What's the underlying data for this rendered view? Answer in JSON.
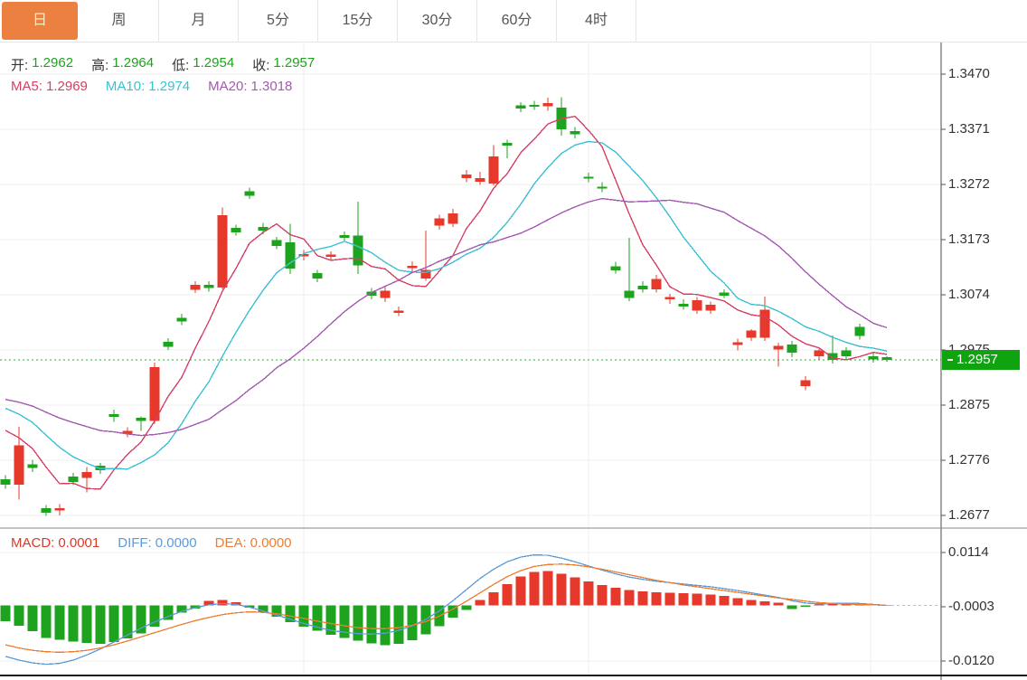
{
  "tabbar": {
    "tabs": [
      {
        "id": "day",
        "label": "日",
        "selected": true
      },
      {
        "id": "week",
        "label": "周",
        "selected": false
      },
      {
        "id": "month",
        "label": "月",
        "selected": false
      },
      {
        "id": "5min",
        "label": "5分",
        "selected": false
      },
      {
        "id": "15min",
        "label": "15分",
        "selected": false
      },
      {
        "id": "30min",
        "label": "30分",
        "selected": false
      },
      {
        "id": "60min",
        "label": "60分",
        "selected": false
      },
      {
        "id": "4hour",
        "label": "4时",
        "selected": false
      }
    ]
  },
  "ohlc_legend": {
    "label_color": "#333333",
    "value_color": "#1ea31e",
    "items": [
      {
        "id": "open",
        "label": "开:",
        "value": "1.2962"
      },
      {
        "id": "high",
        "label": "高:",
        "value": "1.2964"
      },
      {
        "id": "low",
        "label": "低:",
        "value": "1.2954"
      },
      {
        "id": "close",
        "label": "收:",
        "value": "1.2957"
      }
    ]
  },
  "ma_legend": {
    "items": [
      {
        "id": "ma5",
        "label": "MA5:",
        "value": "1.2969",
        "color": "#d64064"
      },
      {
        "id": "ma10",
        "label": "MA10:",
        "value": "1.2974",
        "color": "#3bc0d4"
      },
      {
        "id": "ma20",
        "label": "MA20:",
        "value": "1.3018",
        "color": "#a35ab0"
      }
    ]
  },
  "macd_legend": {
    "items": [
      {
        "id": "macd",
        "label": "MACD:",
        "value": "0.0001",
        "color": "#d93a2b"
      },
      {
        "id": "diff",
        "label": "DIFF:",
        "value": "0.0000",
        "color": "#5b9bd5"
      },
      {
        "id": "dea",
        "label": "DEA:",
        "value": "0.0000",
        "color": "#ed7d31"
      }
    ]
  },
  "price_axis": {
    "ticks": [
      "1.3470",
      "1.3371",
      "1.3272",
      "1.3173",
      "1.3074",
      "1.2975",
      "1.2875",
      "1.2776",
      "1.2677"
    ],
    "tag": {
      "text": "1.2957",
      "bg": "#0fa30f"
    }
  },
  "macd_axis": {
    "ticks": [
      "0.0114",
      "-0.0003",
      "-0.0120"
    ]
  },
  "chart_data": {
    "type": "candlestick",
    "title": "",
    "panels": [
      "price-with-ma",
      "macd"
    ],
    "legend_position": "top-left",
    "grid": true,
    "current_price": 1.2957,
    "y_axis": {
      "tick_prices": [
        1.347,
        1.3371,
        1.3272,
        1.3173,
        1.3074,
        1.2975,
        1.2875,
        1.2776,
        1.2677
      ],
      "range": [
        1.262,
        1.352
      ]
    },
    "candles": [
      [
        1.2743,
        1.275,
        1.2726,
        1.2733
      ],
      [
        1.2733,
        1.2837,
        1.2706,
        1.2804
      ],
      [
        1.277,
        1.2778,
        1.2756,
        1.2763
      ],
      [
        1.2691,
        1.2697,
        1.2677,
        1.2683
      ],
      [
        1.2687,
        1.2698,
        1.2678,
        1.2691
      ],
      [
        1.2748,
        1.2754,
        1.2732,
        1.2738
      ],
      [
        1.2745,
        1.2765,
        1.2719,
        1.2756
      ],
      [
        1.2767,
        1.2772,
        1.2753,
        1.2759
      ],
      [
        1.286,
        1.2868,
        1.2846,
        1.2855
      ],
      [
        1.2824,
        1.2836,
        1.2818,
        1.283
      ],
      [
        1.2853,
        1.2856,
        1.283,
        1.2848
      ],
      [
        1.2848,
        1.2952,
        1.2842,
        1.2944
      ],
      [
        1.299,
        1.2996,
        1.2975,
        1.2981
      ],
      [
        1.3033,
        1.304,
        1.302,
        1.3026
      ],
      [
        1.3083,
        1.3098,
        1.3077,
        1.3092
      ],
      [
        1.3092,
        1.3098,
        1.308,
        1.3086
      ],
      [
        1.3087,
        1.3231,
        1.3084,
        1.3217
      ],
      [
        1.3194,
        1.32,
        1.318,
        1.3186
      ],
      [
        1.326,
        1.3266,
        1.3246,
        1.3252
      ],
      [
        1.3196,
        1.3203,
        1.3183,
        1.3189
      ],
      [
        1.3172,
        1.3178,
        1.3156,
        1.3162
      ],
      [
        1.3168,
        1.3201,
        1.3111,
        1.3121
      ],
      [
        1.3143,
        1.3154,
        1.3136,
        1.3147
      ],
      [
        1.3113,
        1.3119,
        1.3097,
        1.3103
      ],
      [
        1.3142,
        1.3152,
        1.3136,
        1.3146
      ],
      [
        1.3181,
        1.3188,
        1.317,
        1.3176
      ],
      [
        1.318,
        1.3241,
        1.3111,
        1.3127
      ],
      [
        1.308,
        1.3086,
        1.3066,
        1.3072
      ],
      [
        1.3068,
        1.3088,
        1.3061,
        1.3081
      ],
      [
        1.3042,
        1.3053,
        1.3036,
        1.3046
      ],
      [
        1.3122,
        1.3134,
        1.3115,
        1.3126
      ],
      [
        1.3103,
        1.3189,
        1.3099,
        1.3119
      ],
      [
        1.3198,
        1.3218,
        1.3191,
        1.3211
      ],
      [
        1.3201,
        1.3228,
        1.3196,
        1.322
      ],
      [
        1.3283,
        1.3298,
        1.3276,
        1.329
      ],
      [
        1.3277,
        1.3295,
        1.3271,
        1.3283
      ],
      [
        1.3274,
        1.3343,
        1.327,
        1.3322
      ],
      [
        1.3347,
        1.3352,
        1.3319,
        1.3342
      ],
      [
        1.3414,
        1.342,
        1.3402,
        1.3408
      ],
      [
        1.3415,
        1.3422,
        1.3406,
        1.3412
      ],
      [
        1.3412,
        1.3428,
        1.3404,
        1.3418
      ],
      [
        1.341,
        1.3429,
        1.336,
        1.3371
      ],
      [
        1.3368,
        1.3375,
        1.3355,
        1.3362
      ],
      [
        1.3286,
        1.3293,
        1.3276,
        1.3283
      ],
      [
        1.3268,
        1.3276,
        1.3258,
        1.3265
      ],
      [
        1.3125,
        1.3133,
        1.3112,
        1.3118
      ],
      [
        1.3081,
        1.3176,
        1.3063,
        1.3068
      ],
      [
        1.309,
        1.3098,
        1.3078,
        1.3084
      ],
      [
        1.3084,
        1.311,
        1.3078,
        1.3102
      ],
      [
        1.3066,
        1.3076,
        1.3058,
        1.307
      ],
      [
        1.3058,
        1.3066,
        1.3047,
        1.3053
      ],
      [
        1.3046,
        1.307,
        1.304,
        1.3064
      ],
      [
        1.3046,
        1.3062,
        1.304,
        1.3056
      ],
      [
        1.3078,
        1.3084,
        1.3068,
        1.3072
      ],
      [
        1.2984,
        1.2995,
        1.2974,
        1.2989
      ],
      [
        1.2997,
        1.3012,
        1.2991,
        1.301
      ],
      [
        1.2997,
        1.3071,
        1.2991,
        1.3047
      ],
      [
        1.2976,
        1.2988,
        1.2945,
        1.2982
      ],
      [
        1.2985,
        1.2991,
        1.2962,
        1.297
      ],
      [
        1.291,
        1.2928,
        1.2903,
        1.2921
      ],
      [
        1.2964,
        1.298,
        1.2958,
        1.2974
      ],
      [
        1.2969,
        1.3001,
        1.2951,
        1.2957
      ],
      [
        1.2974,
        1.298,
        1.2958,
        1.2964
      ],
      [
        1.3016,
        1.3022,
        1.2994,
        1.3
      ],
      [
        1.2964,
        1.297,
        1.2952,
        1.2958
      ],
      [
        1.2962,
        1.2964,
        1.2954,
        1.2957
      ]
    ],
    "ma_periods": [
      5,
      10,
      20
    ],
    "ma_seed_closes": [
      1.2905,
      1.2903,
      1.2902,
      1.2901,
      1.29,
      1.29,
      1.2901,
      1.2902,
      1.2903,
      1.2904,
      1.291,
      1.2912,
      1.2912,
      1.291,
      1.2906,
      1.287,
      1.286,
      1.285,
      1.284
    ],
    "macd": {
      "axis_tick_values": [
        0.0114,
        -0.0003,
        -0.012
      ],
      "range": [
        -0.014,
        0.0134
      ],
      "diff": [
        -0.011,
        -0.0118,
        -0.0124,
        -0.0127,
        -0.0125,
        -0.0118,
        -0.0107,
        -0.0094,
        -0.0079,
        -0.0064,
        -0.0049,
        -0.0036,
        -0.0024,
        -0.0013,
        -0.0005,
        0.0001,
        0.0004,
        0.0002,
        -0.0004,
        -0.0012,
        -0.0021,
        -0.003,
        -0.0039,
        -0.0047,
        -0.0054,
        -0.0058,
        -0.0061,
        -0.0062,
        -0.006,
        -0.0054,
        -0.0044,
        -0.003,
        -0.0012,
        0.001,
        0.0034,
        0.0058,
        0.0078,
        0.0094,
        0.0104,
        0.0109,
        0.0108,
        0.0102,
        0.0094,
        0.0085,
        0.0076,
        0.0068,
        0.0061,
        0.0056,
        0.0052,
        0.0049,
        0.0046,
        0.0043,
        0.004,
        0.0036,
        0.0032,
        0.0027,
        0.0022,
        0.0017,
        0.001,
        0.0005,
        0.0003,
        0.0004,
        0.0005,
        0.0004,
        0.0002,
        0.0
      ],
      "dea": [
        -0.0085,
        -0.0092,
        -0.0097,
        -0.01,
        -0.0101,
        -0.01,
        -0.0097,
        -0.0092,
        -0.0085,
        -0.0077,
        -0.0068,
        -0.0059,
        -0.005,
        -0.0041,
        -0.0033,
        -0.0026,
        -0.002,
        -0.0016,
        -0.0014,
        -0.0015,
        -0.0018,
        -0.0023,
        -0.0028,
        -0.0034,
        -0.0039,
        -0.0044,
        -0.0048,
        -0.005,
        -0.005,
        -0.0048,
        -0.0043,
        -0.0035,
        -0.0023,
        -0.0008,
        0.0009,
        0.0027,
        0.0045,
        0.0062,
        0.0075,
        0.0084,
        0.0088,
        0.0089,
        0.0087,
        0.0083,
        0.0078,
        0.0072,
        0.0066,
        0.006,
        0.0054,
        0.0049,
        0.0044,
        0.004,
        0.0036,
        0.0032,
        0.0028,
        0.0024,
        0.002,
        0.0016,
        0.0013,
        0.0009,
        0.0006,
        0.0004,
        0.0003,
        0.0002,
        0.0001,
        0.0
      ],
      "hist": [
        -0.0034,
        -0.0044,
        -0.0056,
        -0.007,
        -0.0074,
        -0.0078,
        -0.0081,
        -0.0083,
        -0.0079,
        -0.0071,
        -0.006,
        -0.0046,
        -0.0031,
        -0.0016,
        -0.0007,
        0.001,
        0.0012,
        0.0007,
        -0.0005,
        -0.0014,
        -0.0024,
        -0.0036,
        -0.0046,
        -0.0055,
        -0.0063,
        -0.007,
        -0.0076,
        -0.0082,
        -0.0086,
        -0.0083,
        -0.0075,
        -0.0062,
        -0.0045,
        -0.0026,
        -0.001,
        0.0012,
        0.0028,
        0.0046,
        0.0062,
        0.0072,
        0.0074,
        0.0068,
        0.006,
        0.0052,
        0.0044,
        0.0038,
        0.0033,
        0.003,
        0.0028,
        0.0027,
        0.0026,
        0.0025,
        0.0023,
        0.002,
        0.0016,
        0.0012,
        0.0009,
        0.0006,
        -0.0008,
        -0.0003,
        0.0002,
        0.0004,
        0.0006,
        0.0004,
        0.0002,
        0.0001
      ]
    },
    "colors": {
      "up": "#e6392c",
      "down": "#1ea31e",
      "ma5": "#d64064",
      "ma10": "#3bc0d4",
      "ma20": "#a35ab0",
      "diff": "#5b9bd5",
      "dea": "#ed7d31",
      "priceline": "#2eae2e",
      "dash_ext": "#9ec8e8",
      "grid": "#efefef",
      "axis_line": "#4a4a4a",
      "divider": "#8a8a8a",
      "bottom_line": "#1a1a1a",
      "tick_mark": "#555555"
    }
  }
}
